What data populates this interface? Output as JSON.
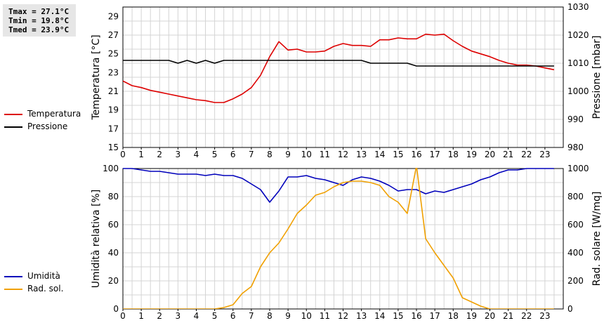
{
  "stats": {
    "tmax": "Tmax = 27.1°C",
    "tmin": "Tmin = 19.8°C",
    "tmed": "Tmed = 23.9°C"
  },
  "colors": {
    "temperature": "#dd0000",
    "pressure": "#000000",
    "humidity": "#0000bb",
    "radiation": "#f0a000",
    "grid": "#d4d4d4"
  },
  "legend_top": [
    {
      "label": "Temperatura",
      "color": "#dd0000"
    },
    {
      "label": "Pressione",
      "color": "#000000"
    }
  ],
  "legend_bottom": [
    {
      "label": "Umidità",
      "color": "#0000bb"
    },
    {
      "label": "Rad. sol.",
      "color": "#f0a000"
    }
  ],
  "chart_data": [
    {
      "type": "line",
      "title": "",
      "xlabel": "",
      "xlim": [
        0,
        24
      ],
      "x_ticks": [
        "0",
        "1",
        "2",
        "3",
        "4",
        "5",
        "6",
        "7",
        "8",
        "9",
        "10",
        "11",
        "12",
        "13",
        "14",
        "15",
        "16",
        "17",
        "18",
        "19",
        "20",
        "21",
        "22",
        "23"
      ],
      "grid": true,
      "legend": "left",
      "y_left": {
        "label": "Temperatura [°C]",
        "lim": [
          15,
          30
        ],
        "ticks": [
          15,
          17,
          19,
          21,
          23,
          25,
          27,
          29
        ]
      },
      "y_right": {
        "label": "Pressione [mbar]",
        "lim": [
          980,
          1030
        ],
        "ticks": [
          980,
          990,
          1000,
          1010,
          1020,
          1030
        ]
      },
      "series": [
        {
          "name": "Temperatura",
          "axis": "left",
          "color": "#dd0000",
          "x": [
            0,
            0.5,
            1,
            1.5,
            2,
            2.5,
            3,
            3.5,
            4,
            4.5,
            5,
            5.5,
            6,
            6.5,
            7,
            7.5,
            8,
            8.5,
            9,
            9.5,
            10,
            10.5,
            11,
            11.5,
            12,
            12.5,
            13,
            13.5,
            14,
            14.5,
            15,
            15.5,
            16,
            16.5,
            17,
            17.5,
            18,
            18.5,
            19,
            19.5,
            20,
            20.5,
            21,
            21.5,
            22,
            22.5,
            23,
            23.5
          ],
          "values": [
            22.1,
            21.6,
            21.4,
            21.1,
            20.9,
            20.7,
            20.5,
            20.3,
            20.1,
            20.0,
            19.8,
            19.8,
            20.2,
            20.7,
            21.4,
            22.7,
            24.7,
            26.3,
            25.4,
            25.5,
            25.2,
            25.2,
            25.3,
            25.8,
            26.1,
            25.9,
            25.9,
            25.8,
            26.5,
            26.5,
            26.7,
            26.6,
            26.6,
            27.1,
            27.0,
            27.1,
            26.4,
            25.8,
            25.3,
            25.0,
            24.7,
            24.3,
            24.0,
            23.8,
            23.8,
            23.7,
            23.5,
            23.3
          ]
        },
        {
          "name": "Pressione",
          "axis": "right",
          "color": "#000000",
          "x": [
            0,
            0.5,
            1,
            1.5,
            2,
            2.5,
            3,
            3.5,
            4,
            4.5,
            5,
            5.5,
            6,
            6.5,
            7,
            7.5,
            8,
            8.5,
            9,
            9.5,
            10,
            10.5,
            11,
            11.5,
            12,
            12.5,
            13,
            13.5,
            14,
            14.5,
            15,
            15.5,
            16,
            16.5,
            17,
            17.5,
            18,
            18.5,
            19,
            19.5,
            20,
            20.5,
            21,
            21.5,
            22,
            22.5,
            23,
            23.5
          ],
          "values": [
            1011,
            1011,
            1011,
            1011,
            1011,
            1011,
            1010,
            1011,
            1010,
            1011,
            1010,
            1011,
            1011,
            1011,
            1011,
            1011,
            1011,
            1011,
            1011,
            1011,
            1011,
            1011,
            1011,
            1011,
            1011,
            1011,
            1011,
            1010,
            1010,
            1010,
            1010,
            1010,
            1009,
            1009,
            1009,
            1009,
            1009,
            1009,
            1009,
            1009,
            1009,
            1009,
            1009,
            1009,
            1009,
            1009,
            1009,
            1009
          ]
        }
      ]
    },
    {
      "type": "line",
      "title": "",
      "xlabel": "",
      "xlim": [
        0,
        24
      ],
      "x_ticks": [
        "0",
        "1",
        "2",
        "3",
        "4",
        "5",
        "6",
        "7",
        "8",
        "9",
        "10",
        "11",
        "12",
        "13",
        "14",
        "15",
        "16",
        "17",
        "18",
        "19",
        "20",
        "21",
        "22",
        "23"
      ],
      "grid": true,
      "legend": "left",
      "y_left": {
        "label": "Umidità relativa [%]",
        "lim": [
          0,
          100
        ],
        "ticks": [
          0,
          20,
          40,
          60,
          80,
          100
        ]
      },
      "y_right": {
        "label": "Rad. solare [W/mq]",
        "lim": [
          0,
          1000
        ],
        "ticks": [
          0,
          200,
          400,
          600,
          800,
          1000
        ]
      },
      "series": [
        {
          "name": "Umidità",
          "axis": "left",
          "color": "#0000bb",
          "x": [
            0,
            0.5,
            1,
            1.5,
            2,
            2.5,
            3,
            3.5,
            4,
            4.5,
            5,
            5.5,
            6,
            6.5,
            7,
            7.5,
            8,
            8.5,
            9,
            9.5,
            10,
            10.5,
            11,
            11.5,
            12,
            12.5,
            13,
            13.5,
            14,
            14.5,
            15,
            15.5,
            16,
            16.5,
            17,
            17.5,
            18,
            18.5,
            19,
            19.5,
            20,
            20.5,
            21,
            21.5,
            22,
            22.5,
            23,
            23.5
          ],
          "values": [
            100,
            100,
            99,
            98,
            98,
            97,
            96,
            96,
            96,
            95,
            96,
            95,
            95,
            93,
            89,
            85,
            76,
            84,
            94,
            94,
            95,
            93,
            92,
            90,
            88,
            92,
            94,
            93,
            91,
            88,
            84,
            85,
            85,
            82,
            84,
            83,
            85,
            87,
            89,
            92,
            94,
            97,
            99,
            99,
            100,
            100,
            100,
            100
          ]
        },
        {
          "name": "Rad. sol.",
          "axis": "right",
          "color": "#f0a000",
          "x": [
            0,
            0.5,
            1,
            1.5,
            2,
            2.5,
            3,
            3.5,
            4,
            4.5,
            5,
            5.5,
            6,
            6.5,
            7,
            7.5,
            8,
            8.5,
            9,
            9.5,
            10,
            10.5,
            11,
            11.5,
            12,
            12.5,
            13,
            13.5,
            14,
            14.5,
            15,
            15.5,
            16,
            16.5,
            17,
            17.5,
            18,
            18.5,
            19,
            19.5,
            20,
            20.5,
            21,
            21.5,
            22,
            22.5,
            23,
            23.5
          ],
          "values": [
            0,
            0,
            0,
            0,
            0,
            0,
            0,
            0,
            0,
            0,
            0,
            10,
            30,
            110,
            160,
            300,
            400,
            470,
            570,
            680,
            740,
            810,
            830,
            870,
            900,
            910,
            910,
            900,
            880,
            800,
            760,
            680,
            1020,
            500,
            400,
            310,
            220,
            80,
            50,
            20,
            0,
            0,
            0,
            0,
            0,
            0,
            0,
            0
          ]
        }
      ]
    }
  ]
}
